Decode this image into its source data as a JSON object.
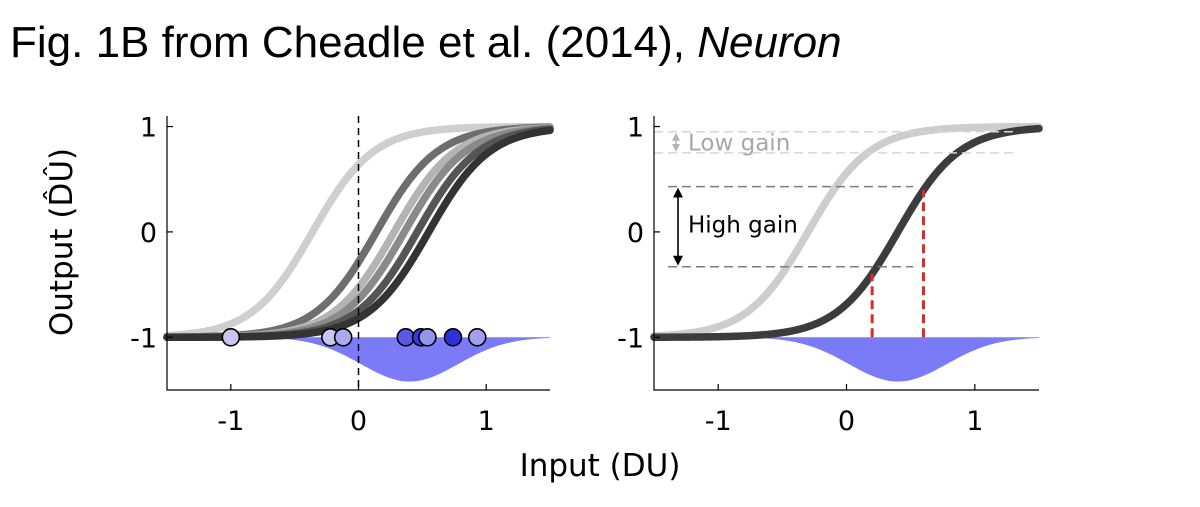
{
  "title": {
    "main": "Fig. 1B from Cheadle et al. (2014), ",
    "journal": "Neuron"
  },
  "colors": {
    "dist_fill": "#7b7bf7",
    "curve_light": "#cdcdcd",
    "curve_dark": "#3c3c3c",
    "red": "#e02a2a"
  },
  "chart_data": [
    {
      "type": "line",
      "panel": "left",
      "xlim": [
        -1.5,
        1.5
      ],
      "ylim": [
        -1.5,
        1.1
      ],
      "xticks": [
        -1,
        0,
        1
      ],
      "yticks": [
        -1,
        0,
        1
      ],
      "xtick_labels": [
        "-1",
        "0",
        "1"
      ],
      "ytick_labels": [
        "-1",
        "0",
        "1"
      ],
      "xlabel": "Input (DU)",
      "ylabel": "Output (D̂Û)",
      "ylabel_text": "Output (DU)",
      "vline_dashed_x": 0,
      "series": [
        {
          "name": "curve-1",
          "midpoint": -0.36,
          "slope": 4.2,
          "color": "#cfcfcf"
        },
        {
          "name": "curve-2",
          "midpoint": 0.14,
          "slope": 4.2,
          "color": "#6e6e6e"
        },
        {
          "name": "curve-3",
          "midpoint": 0.28,
          "slope": 4.2,
          "color": "#b4b4b4"
        },
        {
          "name": "curve-4",
          "midpoint": 0.36,
          "slope": 4.2,
          "color": "#8a8a8a"
        },
        {
          "name": "curve-5",
          "midpoint": 0.46,
          "slope": 4.2,
          "color": "#555555"
        },
        {
          "name": "curve-6",
          "midpoint": 0.55,
          "slope": 4.2,
          "color": "#333333"
        }
      ],
      "distribution": {
        "mean": 0.4,
        "sd": 0.38,
        "depth": 0.42,
        "baseline": -1.0
      },
      "points": [
        {
          "x": -1.0,
          "y": -1.0,
          "color": "#c6c6ef"
        },
        {
          "x": -0.22,
          "y": -1.0,
          "color": "#c6c6ef"
        },
        {
          "x": -0.12,
          "y": -1.0,
          "color": "#a9a9ee"
        },
        {
          "x": 0.37,
          "y": -1.0,
          "color": "#5959e6"
        },
        {
          "x": 0.49,
          "y": -1.0,
          "color": "#3737e0"
        },
        {
          "x": 0.54,
          "y": -1.0,
          "color": "#9595ee"
        },
        {
          "x": 0.74,
          "y": -1.0,
          "color": "#2f2fdc"
        },
        {
          "x": 0.93,
          "y": -1.0,
          "color": "#a2a2ec"
        }
      ]
    },
    {
      "type": "line",
      "panel": "right",
      "xlim": [
        -1.5,
        1.5
      ],
      "ylim": [
        -1.5,
        1.1
      ],
      "xticks": [
        -1,
        0,
        1
      ],
      "yticks": [
        -1,
        0,
        1
      ],
      "xtick_labels": [
        "-1",
        "0",
        "1"
      ],
      "ytick_labels": [
        "-1",
        "0",
        "1"
      ],
      "series": [
        {
          "name": "curve-light",
          "midpoint": -0.3,
          "slope": 4.2,
          "color": "#cdcdcd"
        },
        {
          "name": "curve-dark",
          "midpoint": 0.4,
          "slope": 4.2,
          "color": "#3c3c3c"
        }
      ],
      "distribution": {
        "mean": 0.4,
        "sd": 0.38,
        "depth": 0.42,
        "baseline": -1.0
      },
      "red_lines_x": [
        0.2,
        0.6
      ],
      "annotations": {
        "low_gain": {
          "label": "Low gain",
          "y_top": 0.95,
          "y_bottom": 0.75
        },
        "high_gain": {
          "label": "High gain",
          "y_top": 0.43,
          "y_bottom": -0.33
        }
      }
    }
  ]
}
